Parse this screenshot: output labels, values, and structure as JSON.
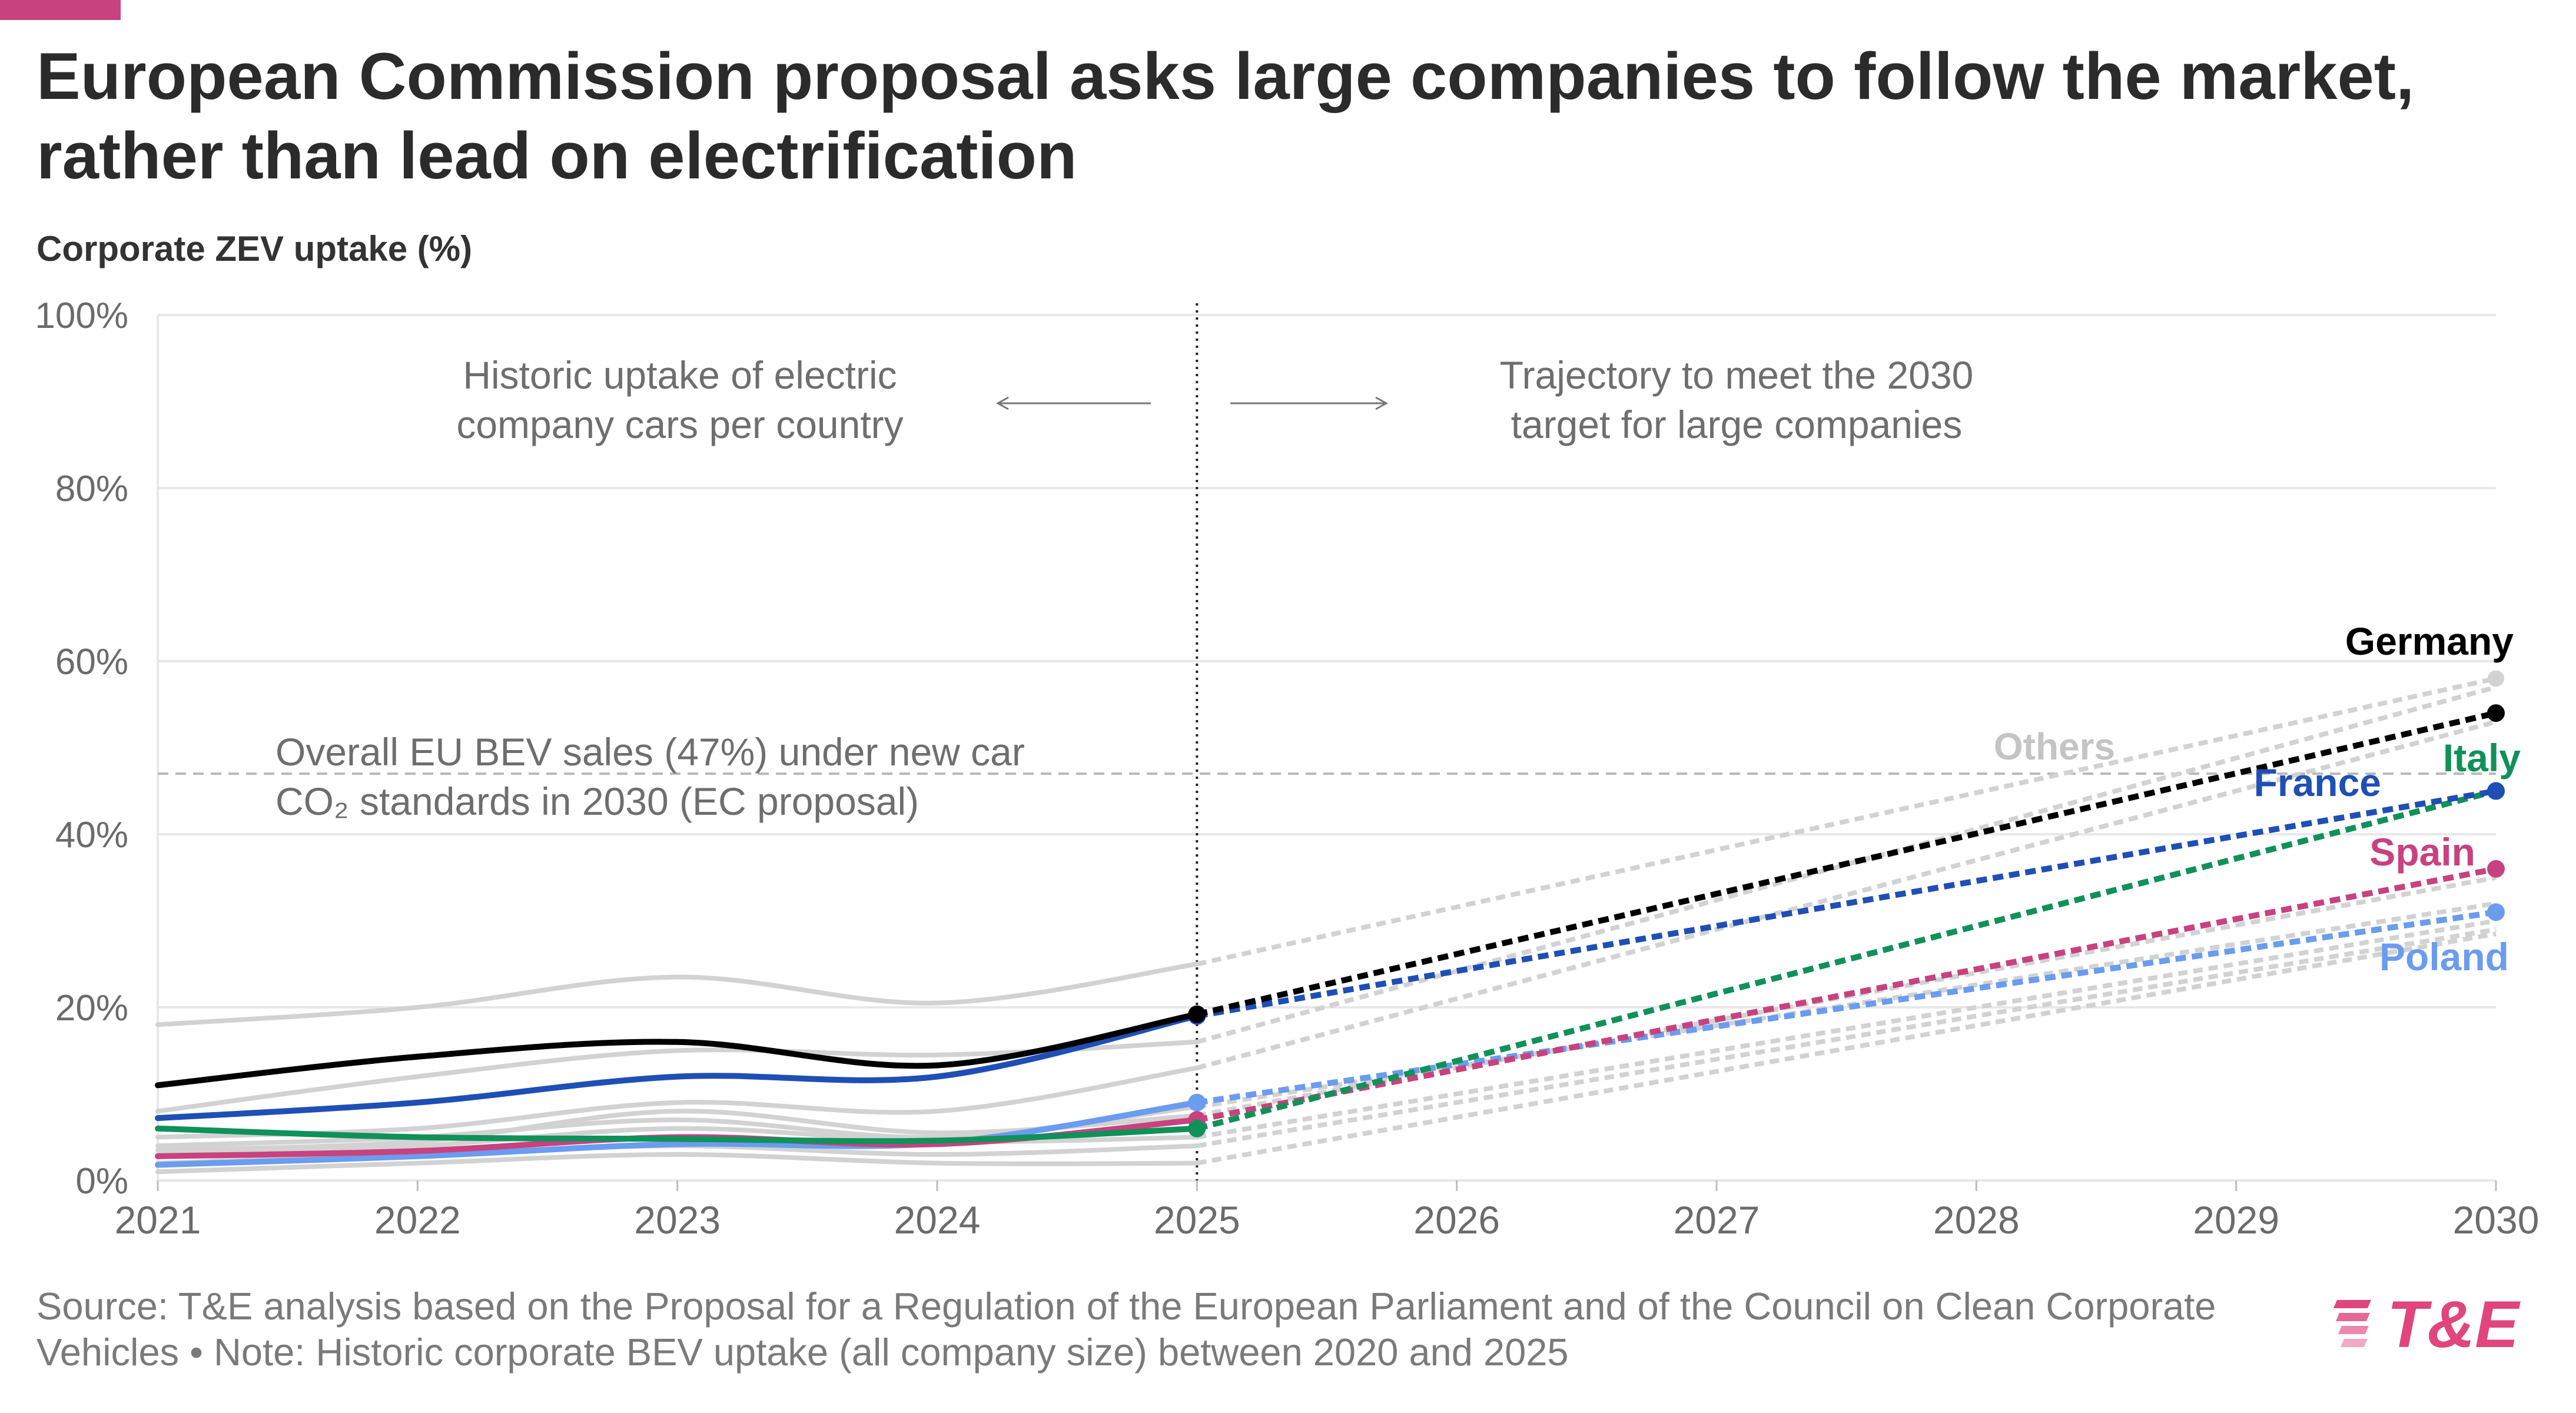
{
  "header": {
    "title": "European Commission proposal asks large companies to follow the market, rather than lead on electrification",
    "accent_color": "#c8427f"
  },
  "footer": {
    "source": "Source: T&E analysis based on the Proposal for a Regulation of the European Parliament and of the Council on Clean Corporate Vehicles • Note: Historic corporate BEV uptake (all company size) between 2020 and 2025"
  },
  "logo": {
    "text": "T&E",
    "color": "#e0457b"
  },
  "chart_data": {
    "type": "line",
    "title": "European Commission proposal asks large companies to follow the market, rather than lead on electrification",
    "ylabel": "Corporate ZEV uptake (%)",
    "xlabel": "",
    "xlim": [
      2021,
      2030
    ],
    "ylim": [
      0,
      100
    ],
    "x_ticks": [
      "2021",
      "2022",
      "2023",
      "2024",
      "2025",
      "2026",
      "2027",
      "2028",
      "2029",
      "2030"
    ],
    "y_ticks": [
      "0%",
      "20%",
      "40%",
      "60%",
      "80%",
      "100%"
    ],
    "grid": true,
    "divider_year": 2025,
    "annotations": {
      "historic": [
        "Historic uptake of electric",
        "company cars per country"
      ],
      "trajectory": [
        "Trajectory to meet the 2030",
        "target for large companies"
      ],
      "eu_line": [
        "Overall EU BEV sales (47%) under new car",
        "CO₂ standards in 2030 (EC proposal)"
      ],
      "others_label": "Others"
    },
    "reference_line": {
      "value": 47
    },
    "series": [
      {
        "name": "Germany",
        "color": "#000000",
        "historic": [
          [
            2021,
            11
          ],
          [
            2022,
            14.3
          ],
          [
            2023,
            16
          ],
          [
            2024,
            13.3
          ],
          [
            2025,
            19.2
          ]
        ],
        "target": [
          [
            2025,
            19.2
          ],
          [
            2030,
            54
          ]
        ]
      },
      {
        "name": "France",
        "color": "#1f4fb5",
        "historic": [
          [
            2021,
            7.2
          ],
          [
            2022,
            9
          ],
          [
            2023,
            12
          ],
          [
            2024,
            12
          ],
          [
            2025,
            19
          ]
        ],
        "target": [
          [
            2025,
            19
          ],
          [
            2030,
            45
          ]
        ]
      },
      {
        "name": "Italy",
        "color": "#10915a",
        "historic": [
          [
            2021,
            6
          ],
          [
            2022,
            5
          ],
          [
            2023,
            4.8
          ],
          [
            2024,
            4.6
          ],
          [
            2025,
            6
          ]
        ],
        "target": [
          [
            2025,
            6
          ],
          [
            2030,
            45
          ]
        ]
      },
      {
        "name": "Spain",
        "color": "#c8427f",
        "historic": [
          [
            2021,
            2.8
          ],
          [
            2022,
            3.4
          ],
          [
            2023,
            5
          ],
          [
            2024,
            4.2
          ],
          [
            2025,
            7
          ]
        ],
        "target": [
          [
            2025,
            7
          ],
          [
            2030,
            36
          ]
        ]
      },
      {
        "name": "Poland",
        "color": "#6a9cef",
        "historic": [
          [
            2021,
            1.8
          ],
          [
            2022,
            2.8
          ],
          [
            2023,
            4.2
          ],
          [
            2024,
            4.3
          ],
          [
            2025,
            9
          ]
        ],
        "target": [
          [
            2025,
            9
          ],
          [
            2030,
            31
          ]
        ]
      }
    ],
    "others": {
      "color": "#d2d2d2",
      "historic": [
        [
          18,
          20,
          23.5,
          20.5,
          25
        ],
        [
          8,
          12,
          15,
          14.5,
          16
        ],
        [
          5,
          6,
          9,
          8,
          13
        ],
        [
          4,
          5,
          7,
          5,
          8.5
        ],
        [
          3,
          4,
          6,
          4.5,
          5
        ],
        [
          2,
          3,
          4,
          3,
          4
        ],
        [
          1,
          2,
          3,
          2,
          2
        ],
        [
          3.5,
          4.5,
          8,
          5.5,
          7.5
        ]
      ],
      "target": [
        [
          25,
          58
        ],
        [
          16,
          57
        ],
        [
          13,
          53
        ],
        [
          8.5,
          32
        ],
        [
          5,
          30
        ],
        [
          4,
          29
        ],
        [
          2,
          28.5
        ],
        [
          7.5,
          35
        ]
      ]
    }
  }
}
